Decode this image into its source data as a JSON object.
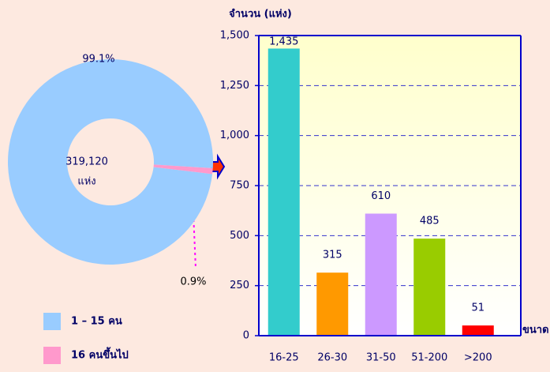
{
  "chart_data": [
    {
      "type": "pie",
      "categories": [
        "1 – 15 คน",
        "16 คนขึ้นไป"
      ],
      "values": [
        99.1,
        0.9
      ],
      "value_labels": [
        "99.1%",
        "0.9%"
      ],
      "colors": [
        "#99ccff",
        "#ff99cc"
      ],
      "center_label": [
        "319,120",
        "แห่ง"
      ],
      "legend": "bottom-left"
    },
    {
      "type": "bar",
      "ylabel": "จำนวน (แห่ง)",
      "xlabel": "ขนาด",
      "categories": [
        "16-25",
        "26-30",
        "31-50",
        "51-200",
        ">200"
      ],
      "values": [
        1435,
        315,
        610,
        485,
        51
      ],
      "value_labels": [
        "1,435",
        "315",
        "610",
        "485",
        "51"
      ],
      "colors": [
        "#33cccc",
        "#ff9900",
        "#cc99ff",
        "#99cc00",
        "#ff0000"
      ],
      "ylim": [
        0,
        1500
      ],
      "yticks": [
        0,
        250,
        500,
        750,
        {
          "value": 1000,
          "label": "1,000"
        },
        {
          "value": 1250,
          "label": "1,250"
        },
        {
          "value": 1500,
          "label": "1,500"
        }
      ],
      "grid": true
    }
  ]
}
